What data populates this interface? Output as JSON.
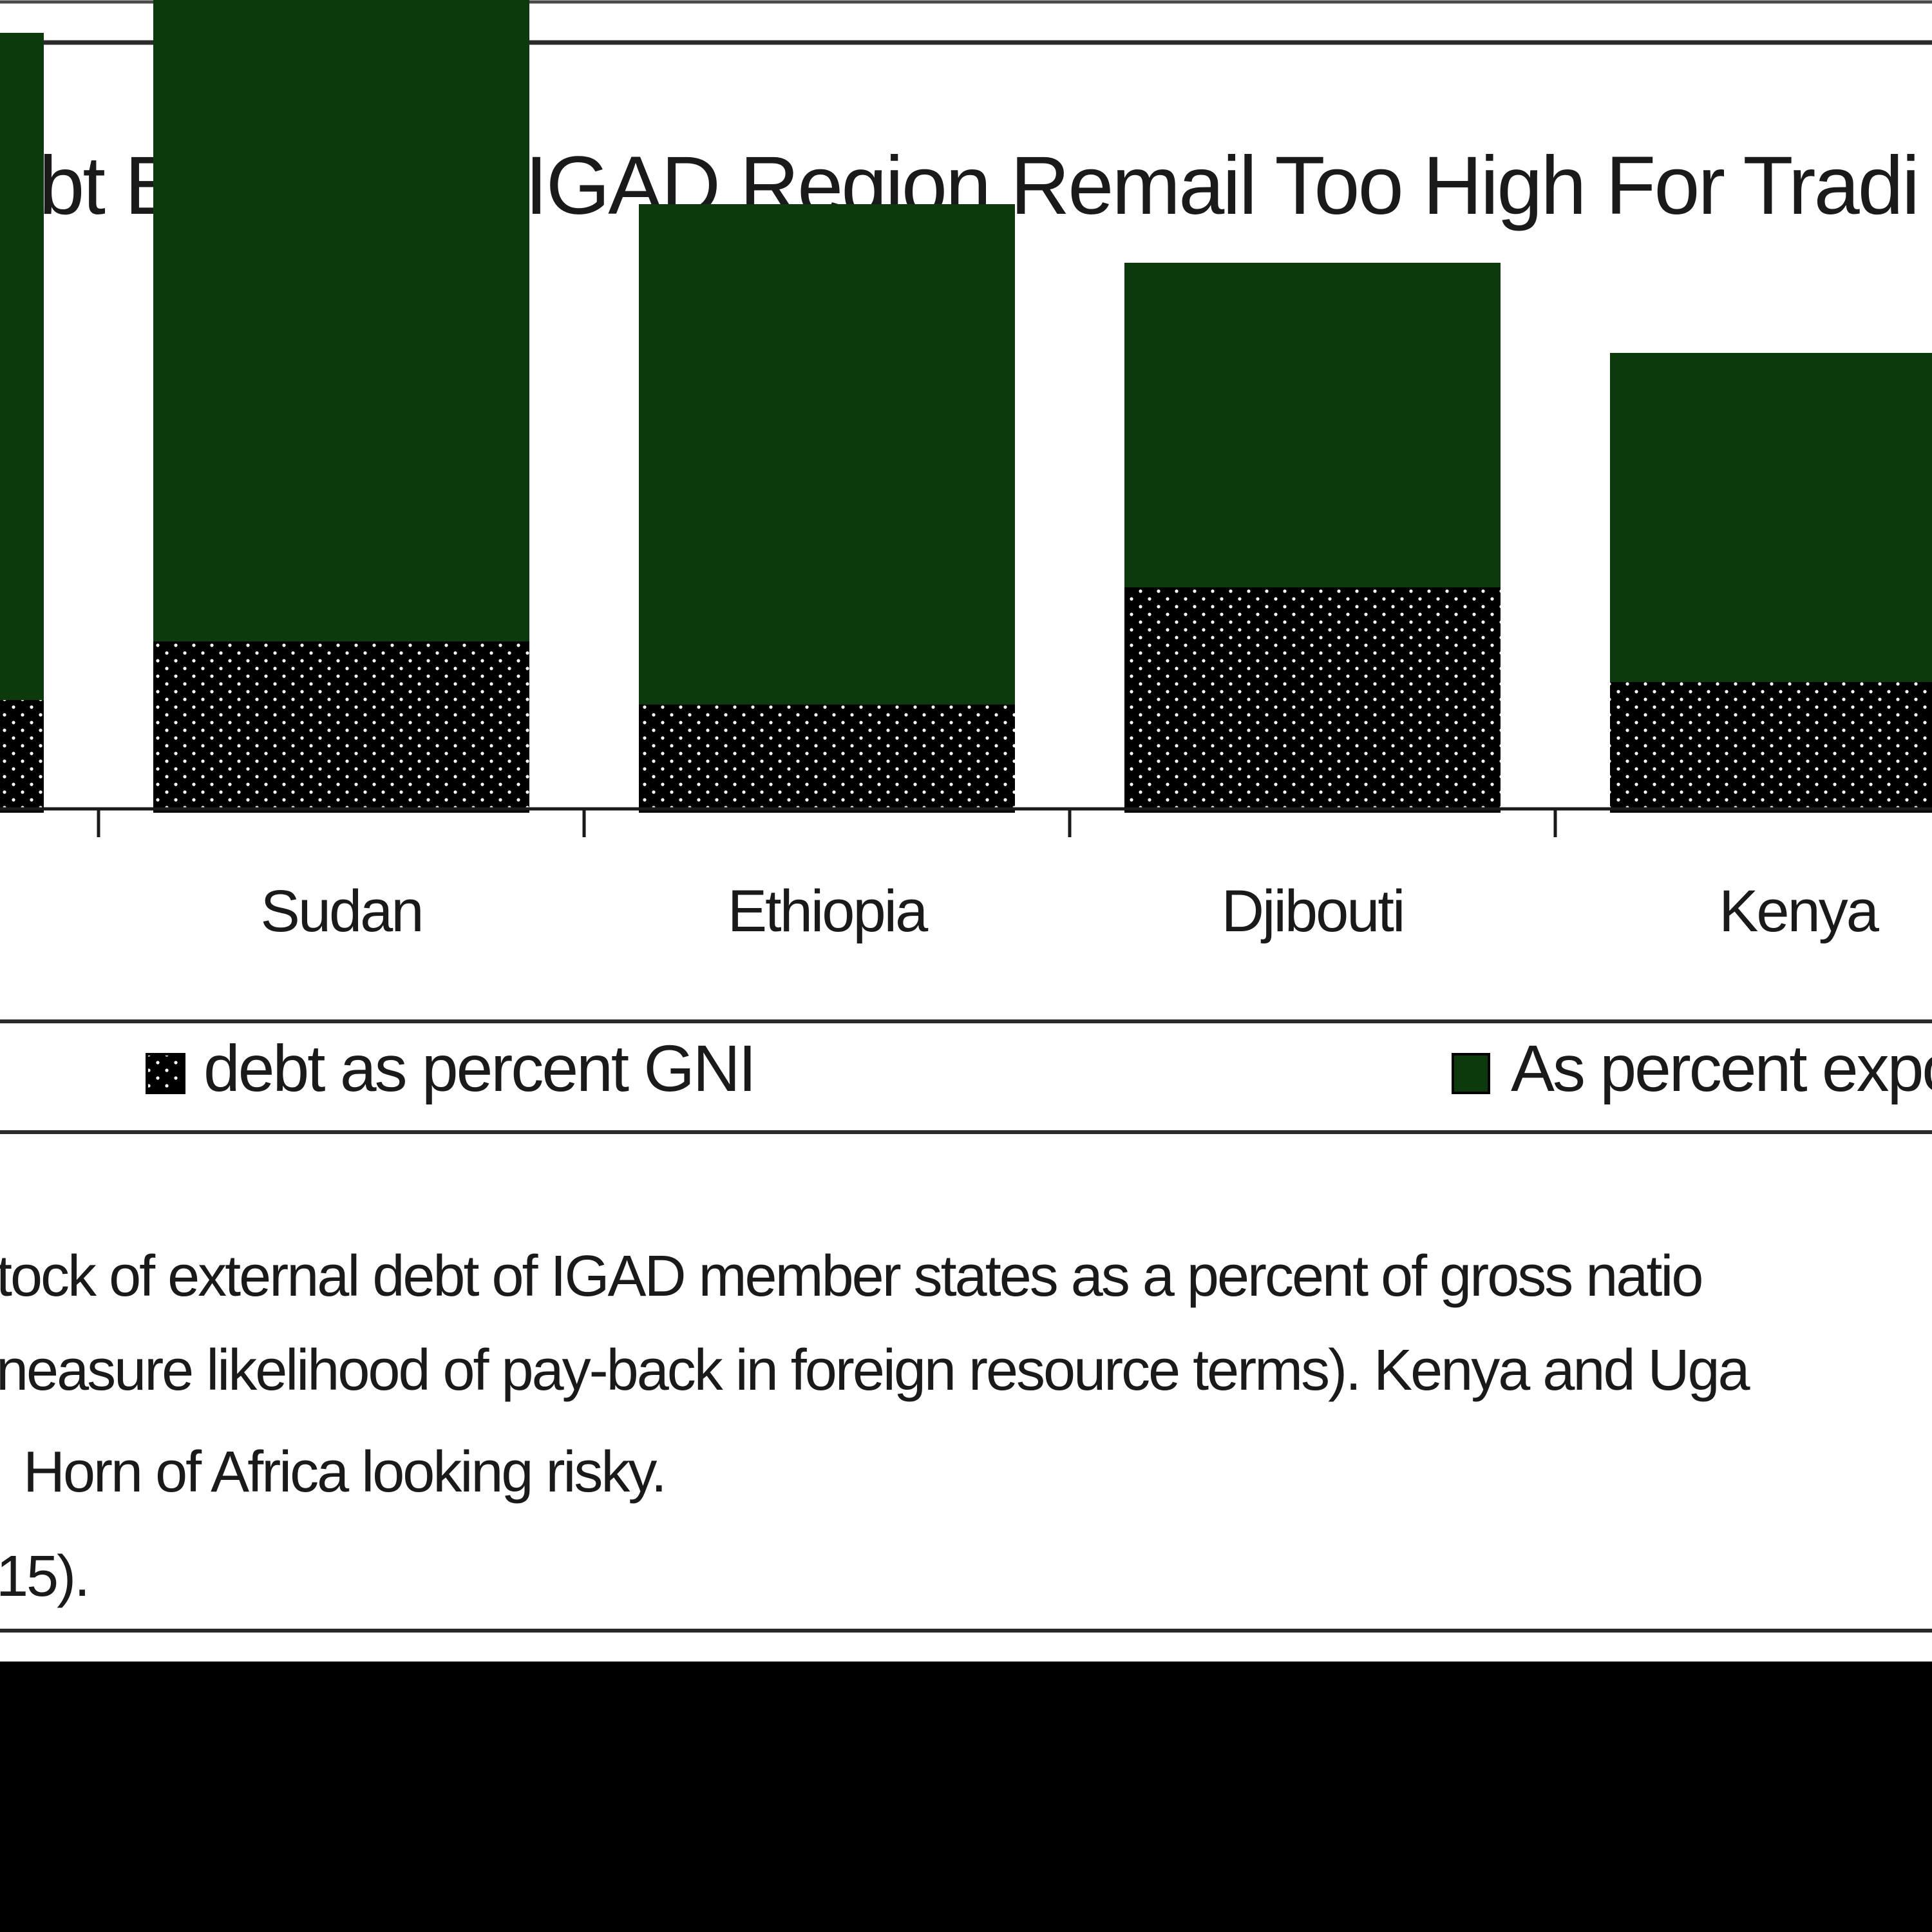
{
  "chart_data": {
    "type": "bar",
    "stacked": true,
    "title": "ebt Burdens In IGAD Region Remail Too High For Tradi",
    "categories": [
      "",
      "Sudan",
      "Ethiopia",
      "Djibouti",
      "Kenya"
    ],
    "series": [
      {
        "name": "debt as percent GNI",
        "legend_label": "debt as percent GNI",
        "values": [
          25,
          38,
          24,
          50,
          29
        ],
        "color": "#000000",
        "pattern": "dotted"
      },
      {
        "name": "As percent exports",
        "legend_label": "As percent expo",
        "values": [
          148,
          162,
          111,
          72,
          73
        ],
        "color": "#0d3a0d",
        "pattern": "solid"
      }
    ],
    "ylim": [
      0,
      200
    ],
    "xlabel": "",
    "ylabel": "",
    "grid": false,
    "legend_position": "bottom"
  },
  "caption": {
    "lines": [
      "tock of external debt of IGAD member states as a percent of gross natio",
      "neasure likelihood of pay-back in foreign resource terms). Kenya and Uga",
      "Horn of Africa looking risky.",
      "15)."
    ]
  },
  "colors": {
    "background": "#ffffff",
    "frame": "#2a2a2a",
    "bottom_band": "#000000",
    "text": "#1a1a1a"
  }
}
